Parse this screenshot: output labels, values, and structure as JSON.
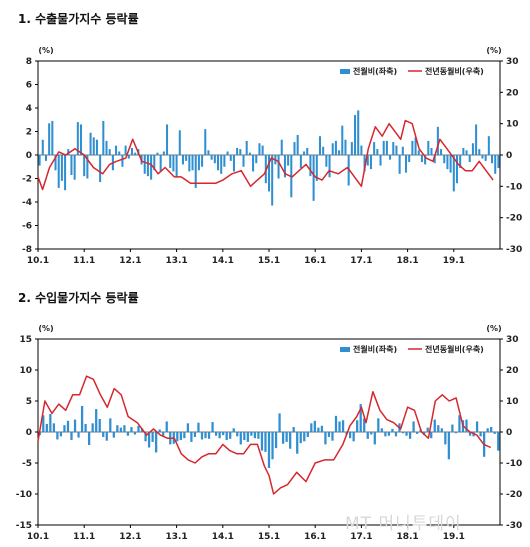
{
  "panels": [
    {
      "title": "1. 수출물가지수 등락률"
    },
    {
      "title": "2. 수입물가지수 등락률"
    }
  ],
  "watermark": "MT 머니투데이",
  "colors": {
    "bar": "#2f8fd1",
    "line": "#d6272e"
  },
  "chart_data": [
    {
      "type": "bar",
      "title": "1. 수출물가지수 등락률",
      "left_axis_unit": "(%)",
      "right_axis_unit": "(%)",
      "x_tick_labels": [
        "10.1",
        "11.1",
        "12.1",
        "13.1",
        "14.1",
        "15.1",
        "16.1",
        "17.1",
        "18.1",
        "19.1"
      ],
      "ylim_left": [
        -8,
        8
      ],
      "yticks_left": [
        -8,
        -6,
        -4,
        -2,
        0,
        2,
        4,
        6,
        8
      ],
      "ylim_right": [
        -30,
        30
      ],
      "yticks_right": [
        -30,
        -20,
        -10,
        0,
        10,
        20,
        30
      ],
      "legend_position": "top-right",
      "series": [
        {
          "name": "전월비(좌축)",
          "axis": "left",
          "type": "bar",
          "values": [
            -0.9,
            1.3,
            -0.5,
            2.7,
            2.9,
            -1.3,
            -2.8,
            -2.2,
            -3.0,
            0.5,
            -1.7,
            -2.1,
            2.8,
            2.6,
            -1.8,
            -2.0,
            1.9,
            1.5,
            1.3,
            -2.3,
            2.9,
            1.2,
            0.5,
            -1.3,
            0.8,
            0.3,
            -1.0,
            0.8,
            -0.3,
            0.6,
            0.2,
            0.5,
            -0.8,
            -1.6,
            -1.8,
            -2.1,
            -1.3,
            0.2,
            -1.4,
            0.3,
            2.6,
            -1.1,
            -1.4,
            -1.9,
            2.1,
            -0.8,
            -0.5,
            -1.4,
            -1.3,
            -2.8,
            -1.3,
            -1.0,
            2.2,
            0.4,
            -0.4,
            -0.7,
            -1.3,
            -1.6,
            -1.0,
            0.3,
            -0.5,
            -1.4,
            0.6,
            0.5,
            -1.0,
            1.2,
            0.2,
            -1.4,
            -0.7,
            1.0,
            0.8,
            -2.4,
            -3.1,
            -4.3,
            -0.8,
            -2.0,
            1.3,
            -1.9,
            -0.9,
            -3.6,
            1.1,
            1.7,
            -1.1,
            0.3,
            0.6,
            -1.8,
            -3.9,
            -2.2,
            1.6,
            0.7,
            -1.0,
            -1.9,
            1.0,
            1.2,
            0.4,
            2.5,
            1.3,
            -2.6,
            1.1,
            3.4,
            3.8,
            0.8,
            -1.4,
            -0.9,
            -1.2,
            1.1,
            0.5,
            -0.9,
            1.2,
            1.2,
            -0.4,
            1.1,
            0.8,
            -1.6,
            0.7,
            -1.5,
            -0.6,
            1.2,
            1.5,
            0.4,
            -0.6,
            -0.8,
            1.2,
            0.6,
            -0.7,
            2.4,
            0.5,
            -0.7,
            -1.2,
            -1.5,
            -3.1,
            -2.4,
            -1.1,
            0.6,
            0.4,
            -0.6,
            1.0,
            2.6,
            0.5,
            -0.3,
            -0.5,
            1.6,
            -0.7,
            -1.6,
            -1.1
          ]
        },
        {
          "name": "전년동월비(우축)",
          "axis": "right",
          "type": "line",
          "x": [
            2010.0,
            2010.1,
            2010.25,
            2010.45,
            2010.6,
            2010.8,
            2011.0,
            2011.2,
            2011.4,
            2011.55,
            2011.7,
            2011.9,
            2012.05,
            2012.25,
            2012.45,
            2012.6,
            2012.75,
            2012.95,
            2013.1,
            2013.3,
            2013.5,
            2013.7,
            2013.85,
            2014.0,
            2014.2,
            2014.4,
            2014.6,
            2014.75,
            2014.9,
            2015.05,
            2015.2,
            2015.35,
            2015.5,
            2015.65,
            2015.8,
            2016.0,
            2016.15,
            2016.3,
            2016.5,
            2016.7,
            2016.85,
            2017.0,
            2017.05,
            2017.15,
            2017.3,
            2017.45,
            2017.6,
            2017.75,
            2017.85,
            2017.95,
            2018.1,
            2018.25,
            2018.4,
            2018.55,
            2018.7,
            2018.85,
            2019.0,
            2019.1,
            2019.25,
            2019.4,
            2019.55,
            2019.7,
            2019.85
          ],
          "values": [
            -7,
            -11,
            -4,
            1,
            0,
            2,
            0,
            -4,
            -6,
            -3,
            -2,
            -1,
            5,
            -2,
            -3,
            -6,
            -4,
            -7,
            -7,
            -9,
            -9,
            -9,
            -9,
            -8,
            -6,
            -5,
            -10,
            -8,
            -6,
            -1,
            -2,
            -6,
            -7,
            -5,
            -3,
            -7,
            -8,
            -5,
            -6,
            -4,
            -7,
            -10,
            -6,
            2,
            9,
            6,
            10,
            7,
            5,
            11,
            10,
            2,
            -1,
            -2,
            5,
            2,
            -1,
            -3,
            -5,
            -5,
            -2,
            -5,
            -8
          ]
        }
      ]
    },
    {
      "type": "bar",
      "title": "2. 수입물가지수 등락률",
      "left_axis_unit": "(%)",
      "right_axis_unit": "(%)",
      "x_tick_labels": [
        "10.1",
        "11.1",
        "12.1",
        "13.1",
        "14.1",
        "15.1",
        "16.1",
        "17.1",
        "18.1",
        "19.1"
      ],
      "ylim_left": [
        -15,
        15
      ],
      "yticks_left": [
        -15,
        -10,
        -5,
        0,
        5,
        10,
        15
      ],
      "ylim_right": [
        -30,
        30
      ],
      "yticks_right": [
        -30,
        -20,
        -10,
        0,
        10,
        20,
        30
      ],
      "legend_position": "top-right",
      "series": [
        {
          "name": "전월비(좌축)",
          "axis": "left",
          "type": "bar",
          "values": [
            -0.5,
            2.7,
            1.3,
            2.9,
            1.4,
            -1.2,
            -0.7,
            1.1,
            1.8,
            -1.3,
            2.0,
            -0.9,
            4.2,
            1.3,
            -2.1,
            1.4,
            3.7,
            2.1,
            -0.8,
            -1.4,
            2.2,
            -0.9,
            1.1,
            0.7,
            1.1,
            -0.6,
            0.8,
            -0.4,
            1.0,
            0.6,
            -1.5,
            -2.5,
            -1.6,
            -3.3,
            0.4,
            -0.6,
            1.7,
            -2.0,
            -1.9,
            -1.5,
            -1.3,
            -1.0,
            1.4,
            -1.6,
            -0.8,
            1.5,
            -1.2,
            -1.0,
            -1.1,
            1.6,
            -0.6,
            -1.0,
            -0.5,
            -1.3,
            -1.1,
            0.6,
            -0.7,
            -2.0,
            -1.3,
            -1.6,
            -0.6,
            -1.0,
            -1.1,
            -3.0,
            -3.2,
            -5.8,
            -4.4,
            -2.6,
            3.0,
            -1.9,
            -1.6,
            -2.7,
            0.8,
            -3.5,
            -1.8,
            -1.5,
            -0.8,
            1.4,
            1.8,
            0.7,
            1.0,
            -2.0,
            -0.8,
            -1.4,
            2.6,
            1.7,
            1.9,
            -0.4,
            -1.0,
            -1.5,
            1.9,
            4.5,
            2.2,
            -1.1,
            -0.4,
            -2.0,
            2.2,
            0.6,
            -0.7,
            -0.6,
            0.5,
            -0.7,
            1.4,
            -0.2,
            -0.6,
            -1.1,
            1.7,
            -0.3,
            0.4,
            -0.5,
            0.7,
            -1.0,
            2.0,
            1.1,
            0.6,
            -2.0,
            -4.4,
            1.2,
            -0.2,
            2.7,
            1.9,
            2.0,
            -0.6,
            -0.7,
            1.7,
            -0.7,
            -4.0,
            0.6,
            0.8,
            -0.3,
            -3.0
          ]
        },
        {
          "name": "전년동월비(우축)",
          "axis": "right",
          "type": "line",
          "x": [
            2010.0,
            2010.15,
            2010.3,
            2010.45,
            2010.6,
            2010.75,
            2010.9,
            2011.05,
            2011.2,
            2011.35,
            2011.5,
            2011.65,
            2011.8,
            2011.95,
            2012.15,
            2012.35,
            2012.5,
            2012.65,
            2012.8,
            2012.95,
            2013.1,
            2013.25,
            2013.4,
            2013.55,
            2013.7,
            2013.85,
            2014.0,
            2014.15,
            2014.3,
            2014.45,
            2014.6,
            2014.75,
            2014.9,
            2015.0,
            2015.1,
            2015.25,
            2015.4,
            2015.6,
            2015.8,
            2016.0,
            2016.2,
            2016.4,
            2016.6,
            2016.75,
            2016.9,
            2017.0,
            2017.1,
            2017.25,
            2017.4,
            2017.55,
            2017.7,
            2017.85,
            2018.0,
            2018.15,
            2018.3,
            2018.45,
            2018.6,
            2018.75,
            2018.9,
            2019.05,
            2019.2,
            2019.35,
            2019.5,
            2019.65,
            2019.8
          ],
          "values": [
            -3,
            10,
            6,
            9,
            7,
            12,
            12,
            18,
            17,
            12,
            8,
            14,
            12,
            5,
            3,
            -1,
            1,
            -1,
            -2,
            -2,
            -7,
            -9,
            -10,
            -8,
            -7,
            -7,
            -4,
            -6,
            -7,
            -7,
            -4,
            -4,
            -11,
            -14,
            -20,
            -18,
            -17,
            -13,
            -16,
            -10,
            -9,
            -9,
            -4,
            2,
            5,
            8,
            3,
            13,
            7,
            4,
            3,
            1,
            8,
            7,
            0,
            -2,
            10,
            12,
            10,
            11,
            2,
            0,
            -1,
            -4,
            -5
          ]
        }
      ]
    }
  ]
}
